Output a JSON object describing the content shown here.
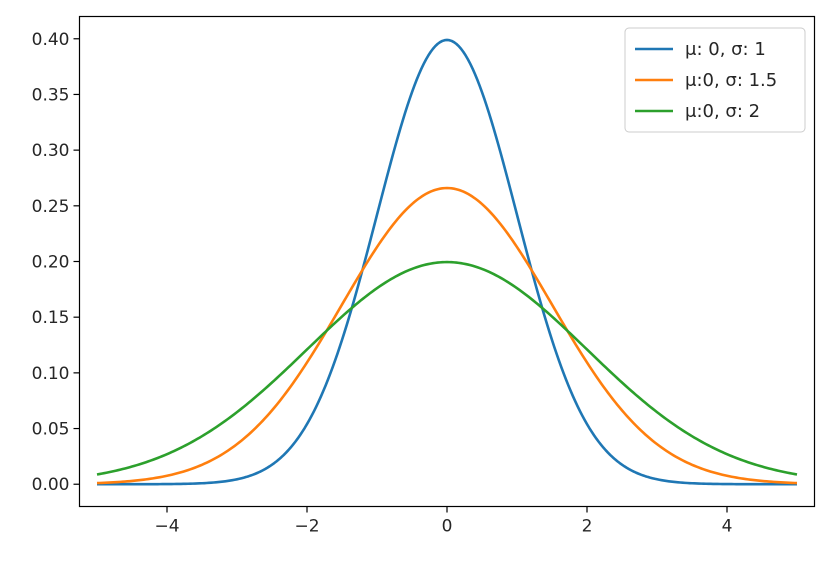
{
  "chart_data": {
    "type": "line",
    "title": "",
    "xlabel": "",
    "ylabel": "",
    "xlim": [
      -5.25,
      5.25
    ],
    "ylim": [
      -0.02,
      0.42
    ],
    "x_range": [
      -5,
      5
    ],
    "x_ticks": [
      -4,
      -2,
      0,
      2,
      4
    ],
    "x_tick_labels": [
      "−4",
      "−2",
      "0",
      "2",
      "4"
    ],
    "y_ticks": [
      0.0,
      0.05,
      0.1,
      0.15,
      0.2,
      0.25,
      0.3,
      0.35,
      0.4
    ],
    "y_tick_labels": [
      "0.00",
      "0.05",
      "0.10",
      "0.15",
      "0.20",
      "0.25",
      "0.30",
      "0.35",
      "0.40"
    ],
    "grid": false,
    "legend_position": "top-right",
    "series": [
      {
        "name": "μ: 0, σ: 1",
        "mu": 0,
        "sigma": 1,
        "color": "#1f77b4",
        "x": [
          -5,
          -4,
          -3,
          -2,
          -1,
          0,
          1,
          2,
          3,
          4,
          5
        ],
        "y": [
          0.0,
          0.0001,
          0.0044,
          0.054,
          0.242,
          0.399,
          0.242,
          0.054,
          0.0044,
          0.0001,
          0.0
        ]
      },
      {
        "name": "μ:0, σ: 1.5",
        "mu": 0,
        "sigma": 1.5,
        "color": "#ff7f0e",
        "x": [
          -5,
          -4,
          -3,
          -2,
          -1,
          0,
          1,
          2,
          3,
          4,
          5
        ],
        "y": [
          0.001,
          0.0076,
          0.036,
          0.109,
          0.213,
          0.266,
          0.213,
          0.109,
          0.036,
          0.0076,
          0.001
        ]
      },
      {
        "name": "μ:0, σ: 2",
        "mu": 0,
        "sigma": 2,
        "color": "#2ca02c",
        "x": [
          -5,
          -4,
          -3,
          -2,
          -1,
          0,
          1,
          2,
          3,
          4,
          5
        ],
        "y": [
          0.0088,
          0.027,
          0.065,
          0.121,
          0.176,
          0.199,
          0.176,
          0.121,
          0.065,
          0.027,
          0.0088
        ]
      }
    ]
  }
}
